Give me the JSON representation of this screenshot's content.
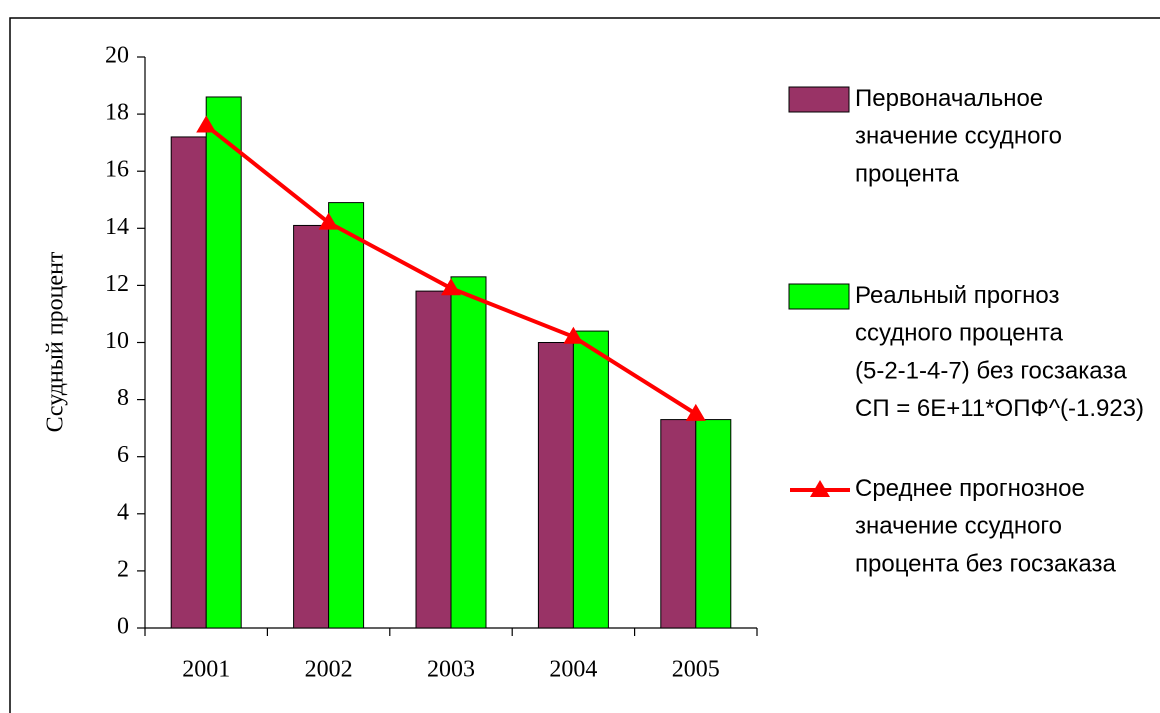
{
  "chart_data": {
    "type": "bar",
    "y_label": "Ссудный процент",
    "categories": [
      "2001",
      "2002",
      "2003",
      "2004",
      "2005"
    ],
    "series": [
      {
        "name": "Первоначальное значение ссудного процента",
        "color": "#993366",
        "values": [
          17.2,
          14.1,
          11.8,
          10.0,
          7.3
        ]
      },
      {
        "name": "Реальный прогноз ссудного процента (5-2-1-4-7) без госзаказа СП = 6E+11*ОПФ^(-1.923)",
        "color": "#00ff00",
        "values": [
          18.6,
          14.9,
          12.3,
          10.4,
          7.3
        ]
      },
      {
        "name": "Среднее прогнозное значение ссудного процента без госзаказа",
        "color": "#ff0000",
        "type": "line",
        "values": [
          17.6,
          14.2,
          11.9,
          10.2,
          7.5
        ]
      }
    ],
    "ylim": [
      0,
      20
    ],
    "yticks": [
      0,
      2,
      4,
      6,
      8,
      10,
      12,
      14,
      16,
      18,
      20
    ],
    "grid": false,
    "legend": "right"
  }
}
